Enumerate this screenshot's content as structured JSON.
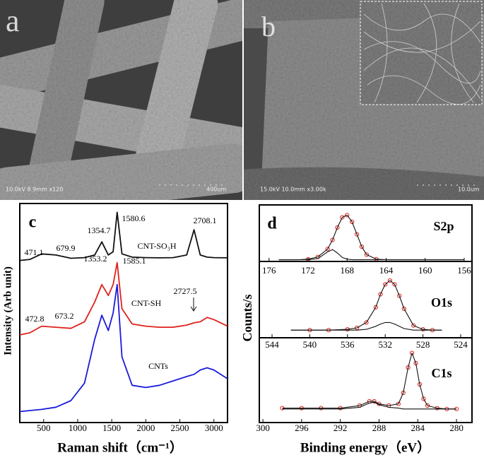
{
  "panels": {
    "a": {
      "label": "a",
      "info": "10.0kV 8.9mm x120",
      "scale": "400um"
    },
    "b": {
      "label": "b",
      "info": "15.0kV 10.0mm x3.00k",
      "scale": "10.0um"
    }
  },
  "chart_data": [
    {
      "type": "line",
      "panel": "c",
      "xlabel": "Raman shift（cm⁻¹）",
      "ylabel": "Intensity (Arb unit)",
      "x": [
        150,
        300,
        472,
        680,
        900,
        1100,
        1250,
        1354,
        1450,
        1520,
        1580,
        1650,
        1800,
        2000,
        2200,
        2400,
        2600,
        2708,
        2800,
        2900,
        3000,
        3200
      ],
      "xlim": [
        150,
        3200
      ],
      "xticks": [
        500,
        1000,
        1500,
        2000,
        2500,
        3000
      ],
      "ylim": [
        0,
        100
      ],
      "series": [
        {
          "name": "CNT-SO₃H",
          "color": "#111111",
          "mode": "line",
          "values": [
            74,
            74.5,
            77,
            76.5,
            75,
            75.3,
            76.5,
            82.5,
            76.5,
            78,
            96,
            77,
            75.5,
            75.3,
            75.2,
            75.3,
            76.5,
            88,
            76.5,
            75.5,
            75.3,
            75.2
          ]
        },
        {
          "name": "CNT-SH",
          "color": "#e0201b",
          "mode": "line",
          "values": [
            40,
            41,
            44,
            43.5,
            43,
            46,
            55,
            63,
            58,
            63,
            73,
            52,
            45,
            44,
            43.5,
            43.5,
            44.5,
            45.5,
            46,
            48,
            47,
            44
          ]
        },
        {
          "name": "CNTs",
          "color": "#1a1adc",
          "mode": "line",
          "values": [
            5,
            5.5,
            6,
            7,
            10,
            18,
            38,
            49,
            42,
            50,
            63,
            30,
            17,
            16,
            17,
            19,
            21,
            22,
            24,
            25,
            24,
            20
          ]
        }
      ],
      "annotations": [
        "471.1",
        "679.9",
        "1354.7",
        "1580.6",
        "2708.1",
        "1353.2",
        "1585.1",
        "2727.5",
        "472.8",
        "673.2"
      ]
    },
    {
      "type": "line",
      "panel": "d",
      "title": "S2p",
      "x": [
        175,
        174,
        173,
        172,
        171,
        170,
        169.5,
        169,
        168.5,
        168,
        167.5,
        167,
        166.5,
        166,
        165,
        164,
        162,
        160,
        158,
        156
      ],
      "xlim": [
        177,
        155.2
      ],
      "xticks": [
        176,
        172,
        168,
        164,
        160,
        156
      ],
      "ylim": [
        0,
        1
      ],
      "series": [
        {
          "color": "#e0201b",
          "mode": "markers",
          "values": [
            null,
            null,
            null,
            0.04,
            0.08,
            0.22,
            0.38,
            0.6,
            0.78,
            0.82,
            0.7,
            0.48,
            0.26,
            0.12,
            0.04,
            null,
            null,
            null,
            null,
            null
          ]
        },
        {
          "color": "#111111",
          "mode": "line",
          "values": [
            0.03,
            0.03,
            0.03,
            0.04,
            0.08,
            0.22,
            0.38,
            0.6,
            0.78,
            0.82,
            0.7,
            0.48,
            0.26,
            0.12,
            0.04,
            0.03,
            0.03,
            0.03,
            0.03,
            0.03
          ]
        },
        {
          "color": "#111111",
          "mode": "line",
          "values": [
            0.03,
            0.03,
            0.03,
            0.03,
            0.05,
            0.17,
            0.21,
            0.15,
            0.07,
            0.04,
            0.03,
            0.03,
            0.03,
            0.03,
            0.03,
            0.03,
            0.03,
            0.03,
            0.03,
            0.03
          ]
        }
      ]
    },
    {
      "type": "line",
      "title": "O1s",
      "ylabel": "Counts/s",
      "x": [
        542,
        540,
        538,
        536,
        535,
        534,
        533,
        532.5,
        532,
        531.5,
        531,
        530.5,
        530,
        529,
        528,
        527,
        526
      ],
      "xlim": [
        545.35,
        522.8
      ],
      "xticks": [
        544,
        540,
        536,
        532,
        528,
        524
      ],
      "ylim": [
        0,
        1
      ],
      "series": [
        {
          "color": "#e0201b",
          "mode": "markers",
          "values": [
            null,
            0.1,
            0.1,
            0.11,
            0.13,
            0.2,
            0.4,
            0.57,
            0.7,
            0.75,
            0.7,
            0.55,
            0.38,
            0.16,
            0.11,
            0.1,
            null
          ]
        },
        {
          "color": "#111111",
          "mode": "line",
          "values": [
            0.1,
            0.1,
            0.1,
            0.11,
            0.13,
            0.2,
            0.4,
            0.57,
            0.7,
            0.75,
            0.7,
            0.55,
            0.38,
            0.16,
            0.11,
            0.1,
            0.1
          ]
        },
        {
          "color": "#111111",
          "mode": "line",
          "values": [
            0.1,
            0.1,
            0.1,
            0.1,
            0.1,
            0.11,
            0.15,
            0.18,
            0.2,
            0.2,
            0.18,
            0.15,
            0.12,
            0.1,
            0.1,
            0.1,
            0.1
          ]
        }
      ]
    },
    {
      "type": "line",
      "title": "C1s",
      "xlabel": "Binding energy（eV）",
      "x": [
        298,
        296,
        294,
        292,
        290,
        289,
        288.5,
        288,
        287,
        286,
        285.5,
        285,
        284.6,
        284.2,
        283.8,
        283.4,
        283,
        282,
        281,
        280
      ],
      "xlim": [
        300.37,
        278.4
      ],
      "xticks": [
        300,
        296,
        292,
        288,
        284,
        280
      ],
      "ylim": [
        0,
        1
      ],
      "series": [
        {
          "color": "#e0201b",
          "mode": "markers",
          "values": [
            0.17,
            0.17,
            0.17,
            0.17,
            0.2,
            0.25,
            0.25,
            0.22,
            0.2,
            0.22,
            0.35,
            0.65,
            0.82,
            0.7,
            0.45,
            0.28,
            0.2,
            0.17,
            0.16,
            0.16
          ]
        },
        {
          "color": "#111111",
          "mode": "line",
          "values": [
            0.17,
            0.17,
            0.17,
            0.17,
            0.2,
            0.25,
            0.25,
            0.22,
            0.2,
            0.22,
            0.35,
            0.65,
            0.82,
            0.7,
            0.45,
            0.28,
            0.2,
            0.17,
            0.16,
            0.16
          ]
        },
        {
          "color": "#111111",
          "mode": "line",
          "values": [
            0.16,
            0.16,
            0.16,
            0.16,
            0.18,
            0.23,
            0.24,
            0.21,
            0.18,
            0.17,
            0.16,
            0.16,
            0.16,
            0.16,
            0.16,
            0.16,
            0.16,
            0.16,
            0.16,
            0.16
          ]
        }
      ]
    }
  ]
}
